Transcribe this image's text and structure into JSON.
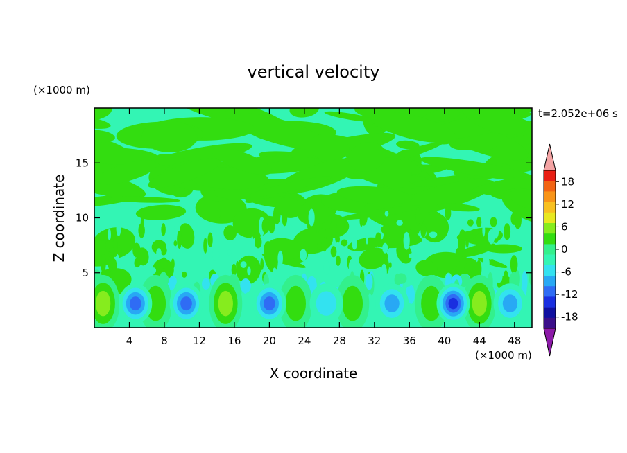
{
  "chart_data": {
    "type": "heatmap",
    "title": "vertical velocity",
    "xlabel": "X coordinate",
    "ylabel": "Z coordinate",
    "x_unit": "(×1000 m)",
    "y_unit": "(×1000 m)",
    "time_label": "t=2.052e+06 s",
    "xlim": [
      0,
      50
    ],
    "ylim": [
      0,
      20
    ],
    "xticks": [
      4,
      8,
      12,
      16,
      20,
      24,
      28,
      32,
      36,
      40,
      44,
      48
    ],
    "yticks": [
      5,
      10,
      15
    ],
    "colorbar": {
      "ticks": [
        "18",
        "12",
        "6",
        "0",
        "-6",
        "-12",
        "-18"
      ],
      "levels": [
        -21,
        -18,
        -15,
        -12,
        -9,
        -6,
        -3,
        0,
        3,
        6,
        9,
        12,
        15,
        18,
        21
      ],
      "colors": [
        "#3b0f8a",
        "#1010a0",
        "#1a2fe0",
        "#2f6cf4",
        "#28a8f4",
        "#33e2f0",
        "#33f5b4",
        "#33f08c",
        "#33dd10",
        "#86ec1e",
        "#e8e820",
        "#f8c020",
        "#f89418",
        "#f26414",
        "#e81e14"
      ],
      "over_color": "#f4a4a4",
      "under_color": "#8c1aa8"
    },
    "surface_field": {
      "description_of_values": "w (m/s), alternating near-surface updraft/downdraft cells",
      "updraft_centers_x": [
        1,
        7,
        15,
        23,
        29.5,
        38.5,
        44
      ],
      "updraft_peak_values": [
        8,
        4,
        8,
        6,
        5,
        6,
        7
      ],
      "downdraft_centers_x": [
        4.7,
        10.5,
        20,
        26.5,
        34,
        41,
        47.5
      ],
      "downdraft_peak_values": [
        -10,
        -12,
        -10,
        -6,
        -8,
        -15,
        -9
      ],
      "cell_center_height": 2.2
    },
    "colors": {
      "background_level": "#33f5b4",
      "positive_patch": "#33dd10"
    }
  }
}
